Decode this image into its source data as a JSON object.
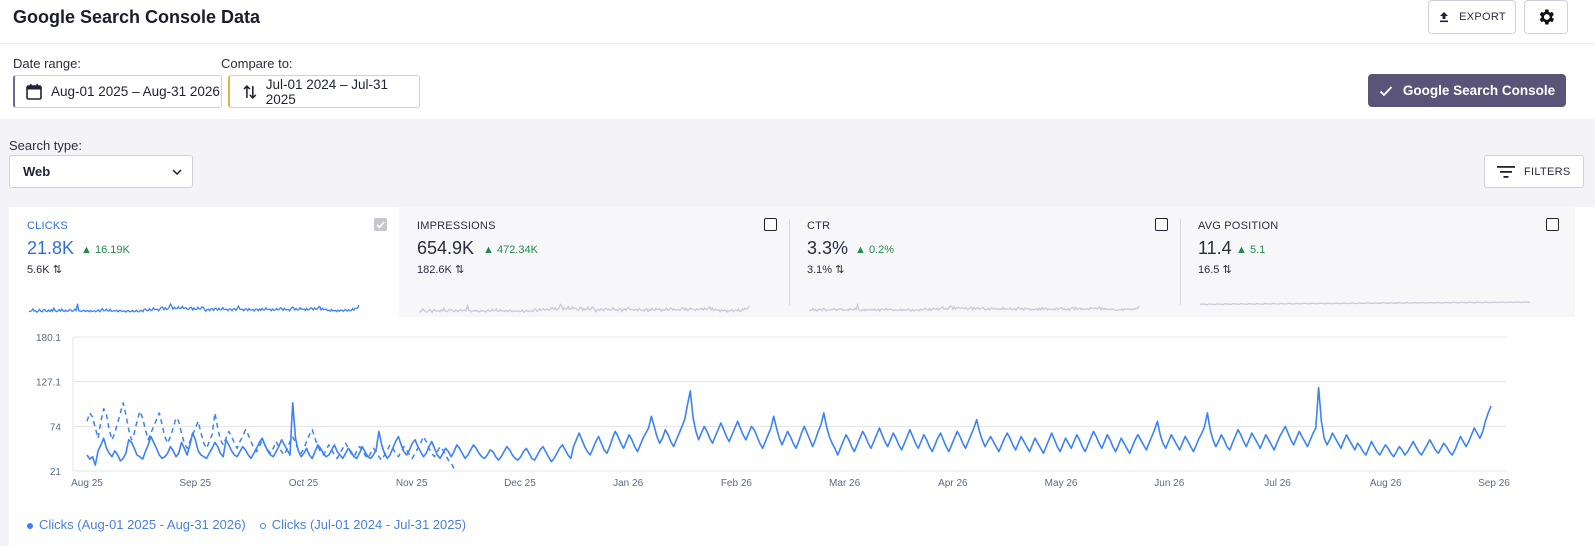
{
  "header": {
    "title": "Google Search Console Data",
    "export_label": "EXPORT"
  },
  "dates": {
    "date_range_label": "Date range:",
    "date_range_value": "Aug-01 2025 – Aug-31 2026",
    "compare_label": "Compare to:",
    "compare_value": "Jul-01 2024 – Jul-31 2025",
    "gsc_button": "Google Search Console"
  },
  "search_type": {
    "label": "Search type:",
    "value": "Web"
  },
  "filters_label": "FILTERS",
  "metrics": [
    {
      "name": "CLICKS",
      "value": "21.8K",
      "delta": "16.19K",
      "prev": "5.6K",
      "active": true
    },
    {
      "name": "IMPRESSIONS",
      "value": "654.9K",
      "delta": "472.34K",
      "prev": "182.6K",
      "active": false
    },
    {
      "name": "CTR",
      "value": "3.3%",
      "delta": "0.2%",
      "prev": "3.1%",
      "active": false
    },
    {
      "name": "AVG POSITION",
      "value": "11.4",
      "delta": "5.1",
      "prev": "16.5",
      "active": false
    }
  ],
  "colors": {
    "accent": "#3b82f6",
    "positive": "#228b4a",
    "primary_button": "#5a5478",
    "inactive_spark": "#c9cad6"
  },
  "chart_data": {
    "type": "line",
    "y_ticks": [
      "180.1",
      "127.1",
      "74",
      "21"
    ],
    "ylim": [
      21,
      180.1
    ],
    "x_ticks": [
      "Aug 25",
      "Sep 25",
      "Oct 25",
      "Nov 25",
      "Dec 25",
      "Jan 26",
      "Feb 26",
      "Mar 26",
      "Apr 26",
      "May 26",
      "Jun 26",
      "Jul 26",
      "Aug 26",
      "Sep 26"
    ],
    "grid": true,
    "legend_position": "bottom-left",
    "series": [
      {
        "name": "Clicks (Aug-01 2025 - Aug-31 2026)",
        "style": "solid",
        "values": [
          40,
          35,
          38,
          28,
          45,
          52,
          60,
          48,
          42,
          38,
          45,
          40,
          33,
          36,
          42,
          58,
          55,
          48,
          40,
          38,
          35,
          44,
          52,
          62,
          55,
          48,
          40,
          36,
          38,
          42,
          50,
          45,
          38,
          42,
          55,
          48,
          40,
          52,
          66,
          58,
          45,
          40,
          38,
          36,
          42,
          48,
          55,
          50,
          42,
          38,
          58,
          52,
          45,
          40,
          38,
          44,
          50,
          46,
          40,
          36,
          42,
          48,
          55,
          60,
          52,
          45,
          40,
          38,
          44,
          50,
          58,
          52,
          46,
          40,
          102,
          60,
          45,
          38,
          42,
          48,
          40,
          36,
          44,
          52,
          48,
          42,
          38,
          40,
          46,
          52,
          44,
          40,
          36,
          42,
          48,
          44,
          38,
          36,
          42,
          50,
          44,
          38,
          36,
          40,
          46,
          68,
          52,
          42,
          36,
          40,
          48,
          56,
          62,
          52,
          44,
          40,
          46,
          54,
          58,
          50,
          44,
          38,
          42,
          50,
          56,
          48,
          40,
          36,
          42,
          48,
          44,
          38,
          44,
          52,
          48,
          42,
          36,
          40,
          46,
          52,
          48,
          42,
          38,
          36,
          40,
          46,
          44,
          38,
          34,
          38,
          44,
          50,
          46,
          40,
          36,
          34,
          38,
          44,
          48,
          42,
          36,
          34,
          40,
          46,
          50,
          44,
          38,
          32,
          36,
          42,
          48,
          52,
          46,
          40,
          36,
          50,
          58,
          66,
          58,
          50,
          44,
          40,
          48,
          56,
          62,
          54,
          46,
          42,
          50,
          60,
          68,
          62,
          54,
          48,
          56,
          64,
          58,
          50,
          44,
          52,
          60,
          66,
          72,
          86,
          74,
          62,
          54,
          60,
          70,
          64,
          56,
          50,
          58,
          66,
          74,
          82,
          100,
          116,
          84,
          68,
          58,
          66,
          74,
          68,
          60,
          54,
          62,
          70,
          78,
          70,
          62,
          56,
          64,
          72,
          80,
          72,
          64,
          58,
          66,
          74,
          70,
          62,
          54,
          48,
          56,
          64,
          72,
          86,
          72,
          60,
          52,
          60,
          68,
          62,
          54,
          48,
          56,
          66,
          74,
          66,
          58,
          50,
          58,
          68,
          76,
          90,
          74,
          62,
          54,
          48,
          40,
          48,
          56,
          64,
          58,
          50,
          44,
          52,
          60,
          68,
          62,
          54,
          48,
          56,
          64,
          72,
          64,
          56,
          50,
          58,
          66,
          60,
          52,
          46,
          54,
          62,
          70,
          62,
          54,
          48,
          56,
          64,
          58,
          50,
          44,
          52,
          60,
          66,
          58,
          50,
          44,
          52,
          60,
          68,
          62,
          54,
          48,
          56,
          64,
          72,
          82,
          68,
          58,
          50,
          56,
          62,
          56,
          50,
          44,
          52,
          60,
          66,
          60,
          52,
          46,
          54,
          62,
          56,
          50,
          44,
          52,
          60,
          54,
          48,
          42,
          50,
          58,
          66,
          58,
          50,
          44,
          52,
          60,
          54,
          48,
          56,
          64,
          58,
          50,
          44,
          52,
          60,
          68,
          62,
          54,
          48,
          56,
          64,
          58,
          50,
          44,
          52,
          60,
          54,
          48,
          42,
          50,
          58,
          64,
          58,
          52,
          46,
          54,
          62,
          70,
          80,
          64,
          54,
          48,
          56,
          64,
          58,
          52,
          46,
          54,
          62,
          56,
          50,
          44,
          52,
          60,
          66,
          74,
          90,
          70,
          58,
          50,
          56,
          64,
          58,
          50,
          46,
          54,
          62,
          70,
          64,
          56,
          50,
          58,
          66,
          60,
          54,
          48,
          56,
          64,
          58,
          52,
          46,
          54,
          62,
          68,
          74,
          66,
          58,
          52,
          60,
          68,
          62,
          56,
          50,
          58,
          66,
          72,
          120,
          80,
          60,
          52,
          58,
          66,
          60,
          54,
          48,
          56,
          64,
          58,
          52,
          46,
          54,
          50,
          44,
          40,
          48,
          56,
          50,
          44,
          40,
          46,
          52,
          48,
          42,
          38,
          44,
          50,
          46,
          40,
          44,
          50,
          56,
          50,
          44,
          40,
          46,
          52,
          58,
          52,
          46,
          42,
          48,
          54,
          50,
          44,
          40,
          46,
          54,
          62,
          56,
          50,
          56,
          64,
          72,
          66,
          60,
          68,
          80,
          90,
          98
        ]
      },
      {
        "name": "Clicks (Jul-01 2024 - Jul-31 2025)",
        "style": "dashed",
        "values": [
          80,
          90,
          85,
          72,
          60,
          80,
          95,
          88,
          70,
          58,
          66,
          78,
          90,
          102,
          88,
          70,
          58,
          66,
          80,
          92,
          84,
          70,
          58,
          66,
          74,
          82,
          90,
          76,
          62,
          54,
          62,
          72,
          84,
          80,
          66,
          54,
          48,
          56,
          64,
          72,
          80,
          66,
          54,
          48,
          56,
          64,
          90,
          72,
          58,
          52,
          60,
          68,
          62,
          54,
          48,
          56,
          62,
          70,
          64,
          56,
          48,
          44,
          50,
          58,
          52,
          46,
          42,
          48,
          56,
          50,
          44,
          40,
          48,
          56,
          62,
          54,
          46,
          42,
          48,
          56,
          64,
          70,
          60,
          50,
          44,
          40,
          46,
          52,
          46,
          40,
          36,
          42,
          48,
          54,
          48,
          42,
          38,
          44,
          50,
          46,
          40,
          36,
          42,
          48,
          44,
          38,
          34,
          40,
          46,
          52,
          48,
          42,
          38,
          44,
          50,
          46,
          40,
          36,
          42,
          48,
          54,
          62,
          56,
          48,
          42,
          38,
          44,
          50,
          46,
          40,
          34,
          30,
          24
        ]
      }
    ]
  }
}
